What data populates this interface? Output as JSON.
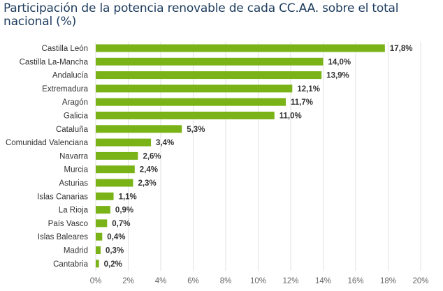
{
  "chart_data": {
    "type": "bar",
    "orientation": "horizontal",
    "title": "Participación de la potencia renovable de cada CC.AA. sobre el total nacional (%)",
    "xlabel": "",
    "ylabel": "",
    "categories": [
      "Castilla León",
      "Castilla La-Mancha",
      "Andalucía",
      "Extremadura",
      "Aragón",
      "Galicia",
      "Cataluña",
      "Comunidad Valenciana",
      "Navarra",
      "Murcia",
      "Asturias",
      "Islas Canarias",
      "La Rioja",
      "País Vasco",
      "Islas Baleares",
      "Madrid",
      "Cantabria"
    ],
    "values": [
      17.8,
      14.0,
      13.9,
      12.1,
      11.7,
      11.0,
      5.3,
      3.4,
      2.6,
      2.4,
      2.3,
      1.1,
      0.9,
      0.7,
      0.4,
      0.3,
      0.2
    ],
    "value_labels": [
      "17,8%",
      "14,0%",
      "13,9%",
      "12,1%",
      "11,7%",
      "11,0%",
      "5,3%",
      "3,4%",
      "2,6%",
      "2,4%",
      "2,3%",
      "1,1%",
      "0,9%",
      "0,7%",
      "0,4%",
      "0,3%",
      "0,2%"
    ],
    "xlim": [
      0,
      20
    ],
    "xticks": [
      0,
      2,
      4,
      6,
      8,
      10,
      12,
      14,
      16,
      18,
      20
    ],
    "xtick_labels": [
      "0%",
      "2%",
      "4%",
      "6%",
      "8%",
      "10%",
      "12%",
      "14%",
      "16%",
      "18%",
      "20%"
    ],
    "grid": "vertical",
    "legend": "none",
    "bar_color": "#7ab317"
  }
}
